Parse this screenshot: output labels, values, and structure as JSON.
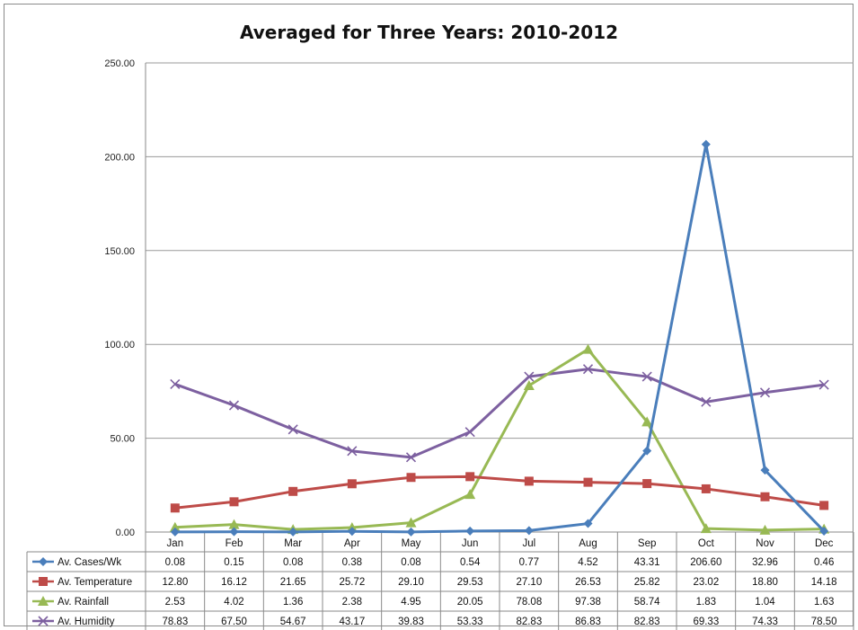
{
  "chart_data": {
    "type": "line",
    "title": "Averaged for Three Years: 2010-2012",
    "xlabel": "",
    "ylabel": "",
    "ylim": [
      0,
      250
    ],
    "yticks": [
      "0.00",
      "50.00",
      "100.00",
      "150.00",
      "200.00",
      "250.00"
    ],
    "grid": true,
    "legend": "data-table",
    "categories": [
      "Jan",
      "Feb",
      "Mar",
      "Apr",
      "May",
      "Jun",
      "Jul",
      "Aug",
      "Sep",
      "Oct",
      "Nov",
      "Dec"
    ],
    "series": [
      {
        "name": "Av. Cases/Wk",
        "color": "#4a7ebb",
        "marker": "diamond",
        "values": [
          0.08,
          0.15,
          0.08,
          0.38,
          0.08,
          0.54,
          0.77,
          4.52,
          43.31,
          206.6,
          32.96,
          0.46
        ],
        "labels": [
          "0.08",
          "0.15",
          "0.08",
          "0.38",
          "0.08",
          "0.54",
          "0.77",
          "4.52",
          "43.31",
          "206.60",
          "32.96",
          "0.46"
        ]
      },
      {
        "name": "Av. Temperature",
        "color": "#be4b48",
        "marker": "square",
        "values": [
          12.8,
          16.12,
          21.65,
          25.72,
          29.1,
          29.53,
          27.1,
          26.53,
          25.82,
          23.02,
          18.8,
          14.18
        ],
        "labels": [
          "12.80",
          "16.12",
          "21.65",
          "25.72",
          "29.10",
          "29.53",
          "27.10",
          "26.53",
          "25.82",
          "23.02",
          "18.80",
          "14.18"
        ]
      },
      {
        "name": "Av. Rainfall",
        "color": "#98b954",
        "marker": "triangle",
        "values": [
          2.53,
          4.02,
          1.36,
          2.38,
          4.95,
          20.05,
          78.08,
          97.38,
          58.74,
          1.83,
          1.04,
          1.63
        ],
        "labels": [
          "2.53",
          "4.02",
          "1.36",
          "2.38",
          "4.95",
          "20.05",
          "78.08",
          "97.38",
          "58.74",
          "1.83",
          "1.04",
          "1.63"
        ]
      },
      {
        "name": "Av. Humidity",
        "color": "#7d60a0",
        "marker": "x",
        "values": [
          78.83,
          67.5,
          54.67,
          43.17,
          39.83,
          53.33,
          82.83,
          86.83,
          82.83,
          69.33,
          74.33,
          78.5
        ],
        "labels": [
          "78.83",
          "67.50",
          "54.67",
          "43.17",
          "39.83",
          "53.33",
          "82.83",
          "86.83",
          "82.83",
          "69.33",
          "74.33",
          "78.50"
        ]
      }
    ]
  }
}
